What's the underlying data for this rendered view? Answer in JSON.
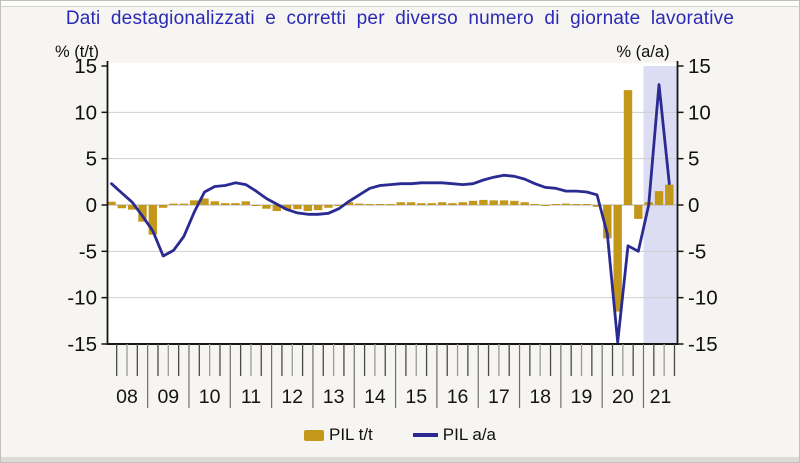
{
  "title": {
    "text": "Dati destagionalizzati e corretti per diverso numero di giornate lavorative"
  },
  "legend": {
    "items": [
      {
        "label": "PIL t/t",
        "swatch": "bar",
        "color": "#c2971a"
      },
      {
        "label": "PIL a/a",
        "swatch": "line",
        "color": "#2a2a92"
      }
    ]
  },
  "colors": {
    "bar": "#c2971a",
    "line": "#2a2a92",
    "highlight": "#dcdcf2",
    "grid": "#cfcfcf",
    "zero_line": "#bdbdbd",
    "axis": "#161616",
    "title_blue": "#2a2ab8",
    "plot_background": "#ffffff"
  },
  "chart_data": {
    "type": "bar",
    "subtype": "combo-bar-line",
    "title": "Dati destagionalizzati e corretti per diverso numero di giornate lavorative",
    "left_axis_label": "% (t/t)",
    "right_axis_label": "% (a/a)",
    "ylim": [
      -15,
      15
    ],
    "y_ticks": [
      15,
      10,
      5,
      0,
      -5,
      -10,
      -15
    ],
    "grid": "horizontal",
    "legend_position": "bottom-center",
    "year_labels": [
      "08",
      "09",
      "10",
      "11",
      "12",
      "13",
      "14",
      "15",
      "16",
      "17",
      "18",
      "19",
      "20",
      "21"
    ],
    "quarters": [
      "2008Q1",
      "2008Q2",
      "2008Q3",
      "2008Q4",
      "2009Q1",
      "2009Q2",
      "2009Q3",
      "2009Q4",
      "2010Q1",
      "2010Q2",
      "2010Q3",
      "2010Q4",
      "2011Q1",
      "2011Q2",
      "2011Q3",
      "2011Q4",
      "2012Q1",
      "2012Q2",
      "2012Q3",
      "2012Q4",
      "2013Q1",
      "2013Q2",
      "2013Q3",
      "2013Q4",
      "2014Q1",
      "2014Q2",
      "2014Q3",
      "2014Q4",
      "2015Q1",
      "2015Q2",
      "2015Q3",
      "2015Q4",
      "2016Q1",
      "2016Q2",
      "2016Q3",
      "2016Q4",
      "2017Q1",
      "2017Q2",
      "2017Q3",
      "2017Q4",
      "2018Q1",
      "2018Q2",
      "2018Q3",
      "2018Q4",
      "2019Q1",
      "2019Q2",
      "2019Q3",
      "2019Q4",
      "2020Q1",
      "2020Q2",
      "2020Q3",
      "2020Q4",
      "2021Q1",
      "2021Q2",
      "2021Q3"
    ],
    "series": [
      {
        "name": "PIL t/t",
        "type": "bar",
        "values": [
          0.35,
          -0.35,
          -0.5,
          -1.8,
          -3.2,
          -0.3,
          0.15,
          0.15,
          0.5,
          0.7,
          0.4,
          0.2,
          0.2,
          0.4,
          -0.1,
          -0.4,
          -0.65,
          -0.5,
          -0.45,
          -0.65,
          -0.55,
          -0.3,
          -0.1,
          0.3,
          0.15,
          0.1,
          0.1,
          0.1,
          0.3,
          0.3,
          0.2,
          0.2,
          0.3,
          0.2,
          0.3,
          0.45,
          0.55,
          0.5,
          0.5,
          0.45,
          0.3,
          0.1,
          -0.1,
          0.1,
          0.15,
          0.1,
          0.1,
          -0.2,
          -3.6,
          -11.5,
          12.4,
          -1.5,
          0.3,
          1.5,
          2.2
        ]
      },
      {
        "name": "PIL a/a",
        "type": "line",
        "values": [
          2.3,
          1.3,
          0.3,
          -1.2,
          -2.8,
          -5.5,
          -4.9,
          -3.4,
          -0.8,
          1.4,
          2.0,
          2.1,
          2.4,
          2.2,
          1.5,
          0.7,
          0.1,
          -0.5,
          -0.85,
          -1.0,
          -1.0,
          -0.9,
          -0.4,
          0.4,
          1.1,
          1.8,
          2.1,
          2.2,
          2.3,
          2.3,
          2.4,
          2.4,
          2.4,
          2.3,
          2.2,
          2.3,
          2.7,
          3.0,
          3.2,
          3.1,
          2.8,
          2.3,
          1.9,
          1.8,
          1.5,
          1.5,
          1.4,
          1.1,
          -3.1,
          -14.8,
          -4.4,
          -5.0,
          0.0,
          13.0,
          2.3
        ]
      }
    ],
    "highlight_region": {
      "from_quarter": "2021Q1",
      "to_quarter": "2021Q3",
      "color": "#dcdcf2"
    }
  }
}
